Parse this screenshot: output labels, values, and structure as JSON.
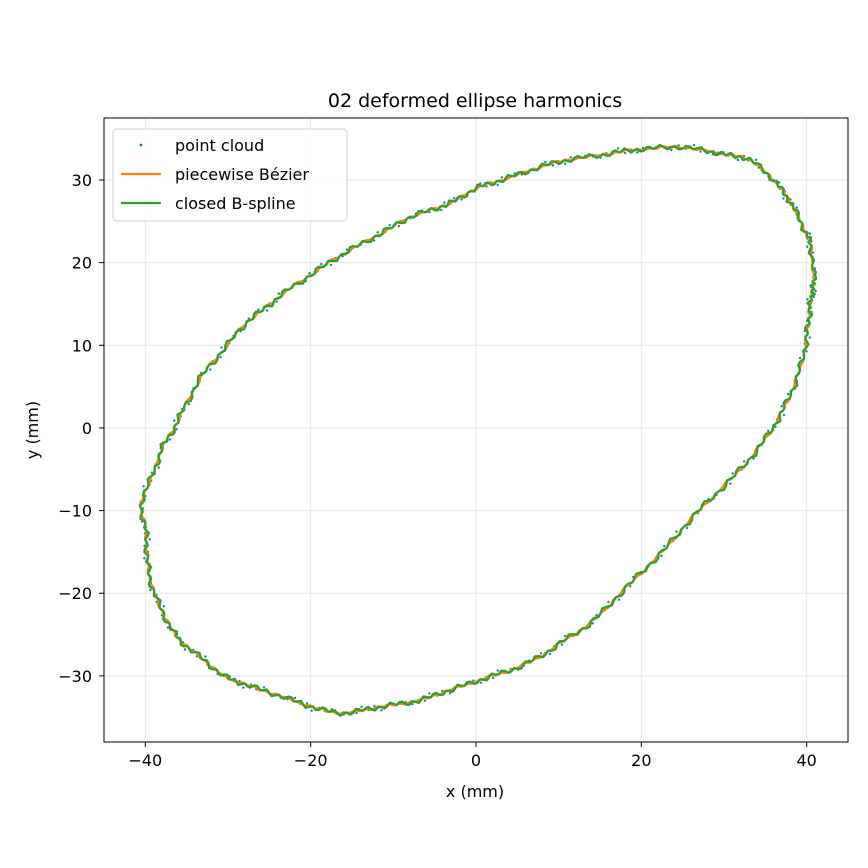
{
  "chart_data": {
    "type": "line",
    "title": "02 deformed ellipse harmonics",
    "xlabel": "x (mm)",
    "ylabel": "y (mm)",
    "xlim": [
      -45,
      45
    ],
    "ylim": [
      -38,
      37.5
    ],
    "xticks": [
      -40,
      -20,
      0,
      20,
      40
    ],
    "yticks": [
      -30,
      -20,
      -10,
      0,
      10,
      20,
      30
    ],
    "xtick_labels": [
      "−40",
      "−20",
      "0",
      "20",
      "40"
    ],
    "ytick_labels": [
      "−30",
      "−20",
      "−10",
      "0",
      "10",
      "20",
      "30"
    ],
    "grid": true,
    "legend": {
      "position": "top-left"
    },
    "colors": {
      "point_cloud": "#1f77b4",
      "bezier": "#ff7f0e",
      "bspline": "#2ca02c",
      "grid": "#e6e6e6"
    },
    "outline": [
      [
        40.8,
        18.5
      ],
      [
        40.5,
        22.0
      ],
      [
        39.8,
        23.8
      ],
      [
        38.5,
        26.5
      ],
      [
        37.2,
        28.5
      ],
      [
        35.5,
        30.5
      ],
      [
        33.0,
        32.5
      ],
      [
        30.5,
        33.0
      ],
      [
        28.0,
        33.5
      ],
      [
        24.5,
        34.0
      ],
      [
        21.0,
        33.8
      ],
      [
        18.0,
        33.5
      ],
      [
        15.0,
        33.0
      ],
      [
        11.5,
        32.5
      ],
      [
        8.5,
        31.8
      ],
      [
        5.5,
        30.8
      ],
      [
        2.5,
        29.8
      ],
      [
        0.0,
        29.0
      ],
      [
        -2.5,
        27.5
      ],
      [
        -5.0,
        26.5
      ],
      [
        -8.0,
        25.5
      ],
      [
        -11.0,
        23.8
      ],
      [
        -14.0,
        22.2
      ],
      [
        -17.0,
        20.5
      ],
      [
        -20.0,
        18.5
      ],
      [
        -23.0,
        16.5
      ],
      [
        -25.5,
        14.5
      ],
      [
        -28.0,
        12.5
      ],
      [
        -30.5,
        9.5
      ],
      [
        -33.0,
        6.5
      ],
      [
        -35.0,
        3.0
      ],
      [
        -36.5,
        0.0
      ],
      [
        -38.0,
        -2.5
      ],
      [
        -39.0,
        -5.5
      ],
      [
        -40.5,
        -9.0
      ],
      [
        -40.0,
        -12.0
      ],
      [
        -39.8,
        -15.0
      ],
      [
        -39.5,
        -18.0
      ],
      [
        -38.5,
        -21.0
      ],
      [
        -37.0,
        -24.0
      ],
      [
        -35.5,
        -26.0
      ],
      [
        -33.0,
        -28.0
      ],
      [
        -30.5,
        -30.0
      ],
      [
        -28.0,
        -31.0
      ],
      [
        -25.0,
        -32.0
      ],
      [
        -22.0,
        -33.0
      ],
      [
        -19.0,
        -34.0
      ],
      [
        -16.0,
        -34.5
      ],
      [
        -13.0,
        -34.0
      ],
      [
        -10.0,
        -33.5
      ],
      [
        -7.0,
        -33.0
      ],
      [
        -4.0,
        -32.0
      ],
      [
        -1.0,
        -31.0
      ],
      [
        2.0,
        -30.0
      ],
      [
        5.0,
        -29.0
      ],
      [
        8.0,
        -27.5
      ],
      [
        11.0,
        -25.5
      ],
      [
        14.0,
        -23.5
      ],
      [
        17.0,
        -20.5
      ],
      [
        20.0,
        -17.5
      ],
      [
        23.0,
        -14.5
      ],
      [
        26.0,
        -11.0
      ],
      [
        29.0,
        -8.0
      ],
      [
        32.0,
        -5.0
      ],
      [
        34.5,
        -2.0
      ],
      [
        36.5,
        1.0
      ],
      [
        38.0,
        4.0
      ],
      [
        39.3,
        7.5
      ],
      [
        40.0,
        11.0
      ],
      [
        40.3,
        13.5
      ],
      [
        40.5,
        15.5
      ],
      [
        40.8,
        17.0
      ]
    ],
    "series": [
      {
        "name": "point cloud",
        "style": "points"
      },
      {
        "name": "piecewise Bézier",
        "style": "line"
      },
      {
        "name": "closed B-spline",
        "style": "line"
      }
    ]
  }
}
